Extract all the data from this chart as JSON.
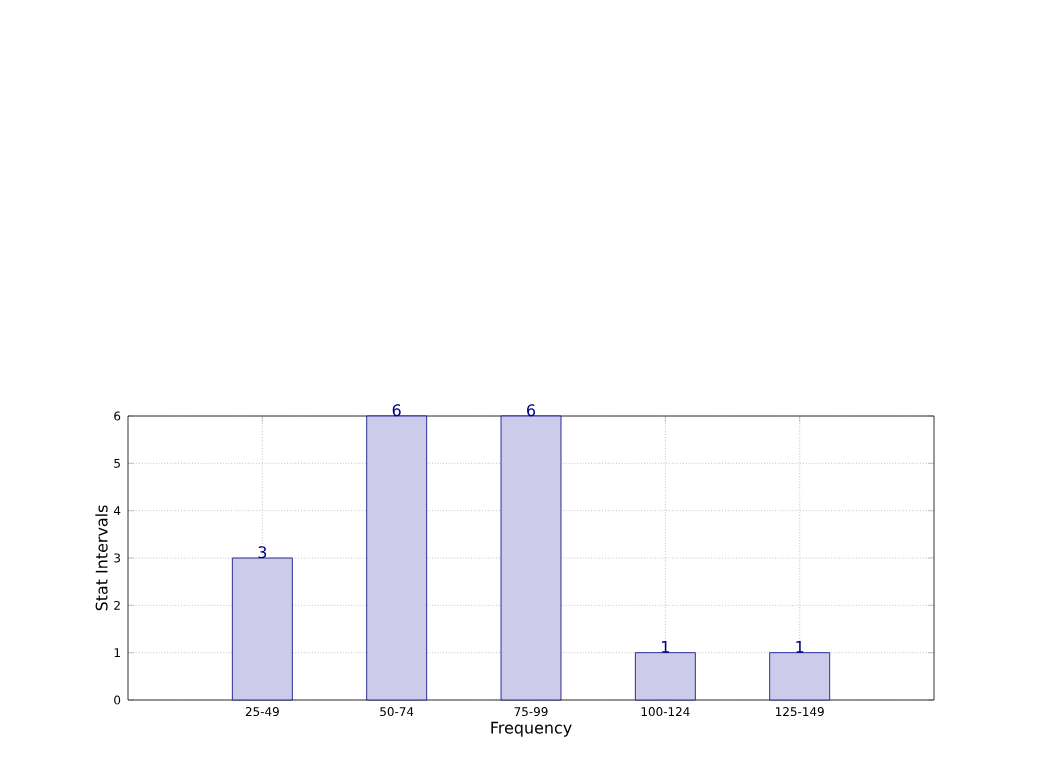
{
  "chart_data": {
    "type": "bar",
    "xlabel": "Frequency",
    "ylabel": "Stat Intervals",
    "categories": [
      "25-49",
      "50-74",
      "75-99",
      "100-124",
      "125-149"
    ],
    "values": [
      3,
      6,
      6,
      1,
      1
    ],
    "color": "#ccccea",
    "data_labels": true,
    "ylim": [
      0,
      6
    ],
    "yticks": [
      0,
      1,
      2,
      3,
      4,
      5,
      6
    ],
    "grid": true
  }
}
